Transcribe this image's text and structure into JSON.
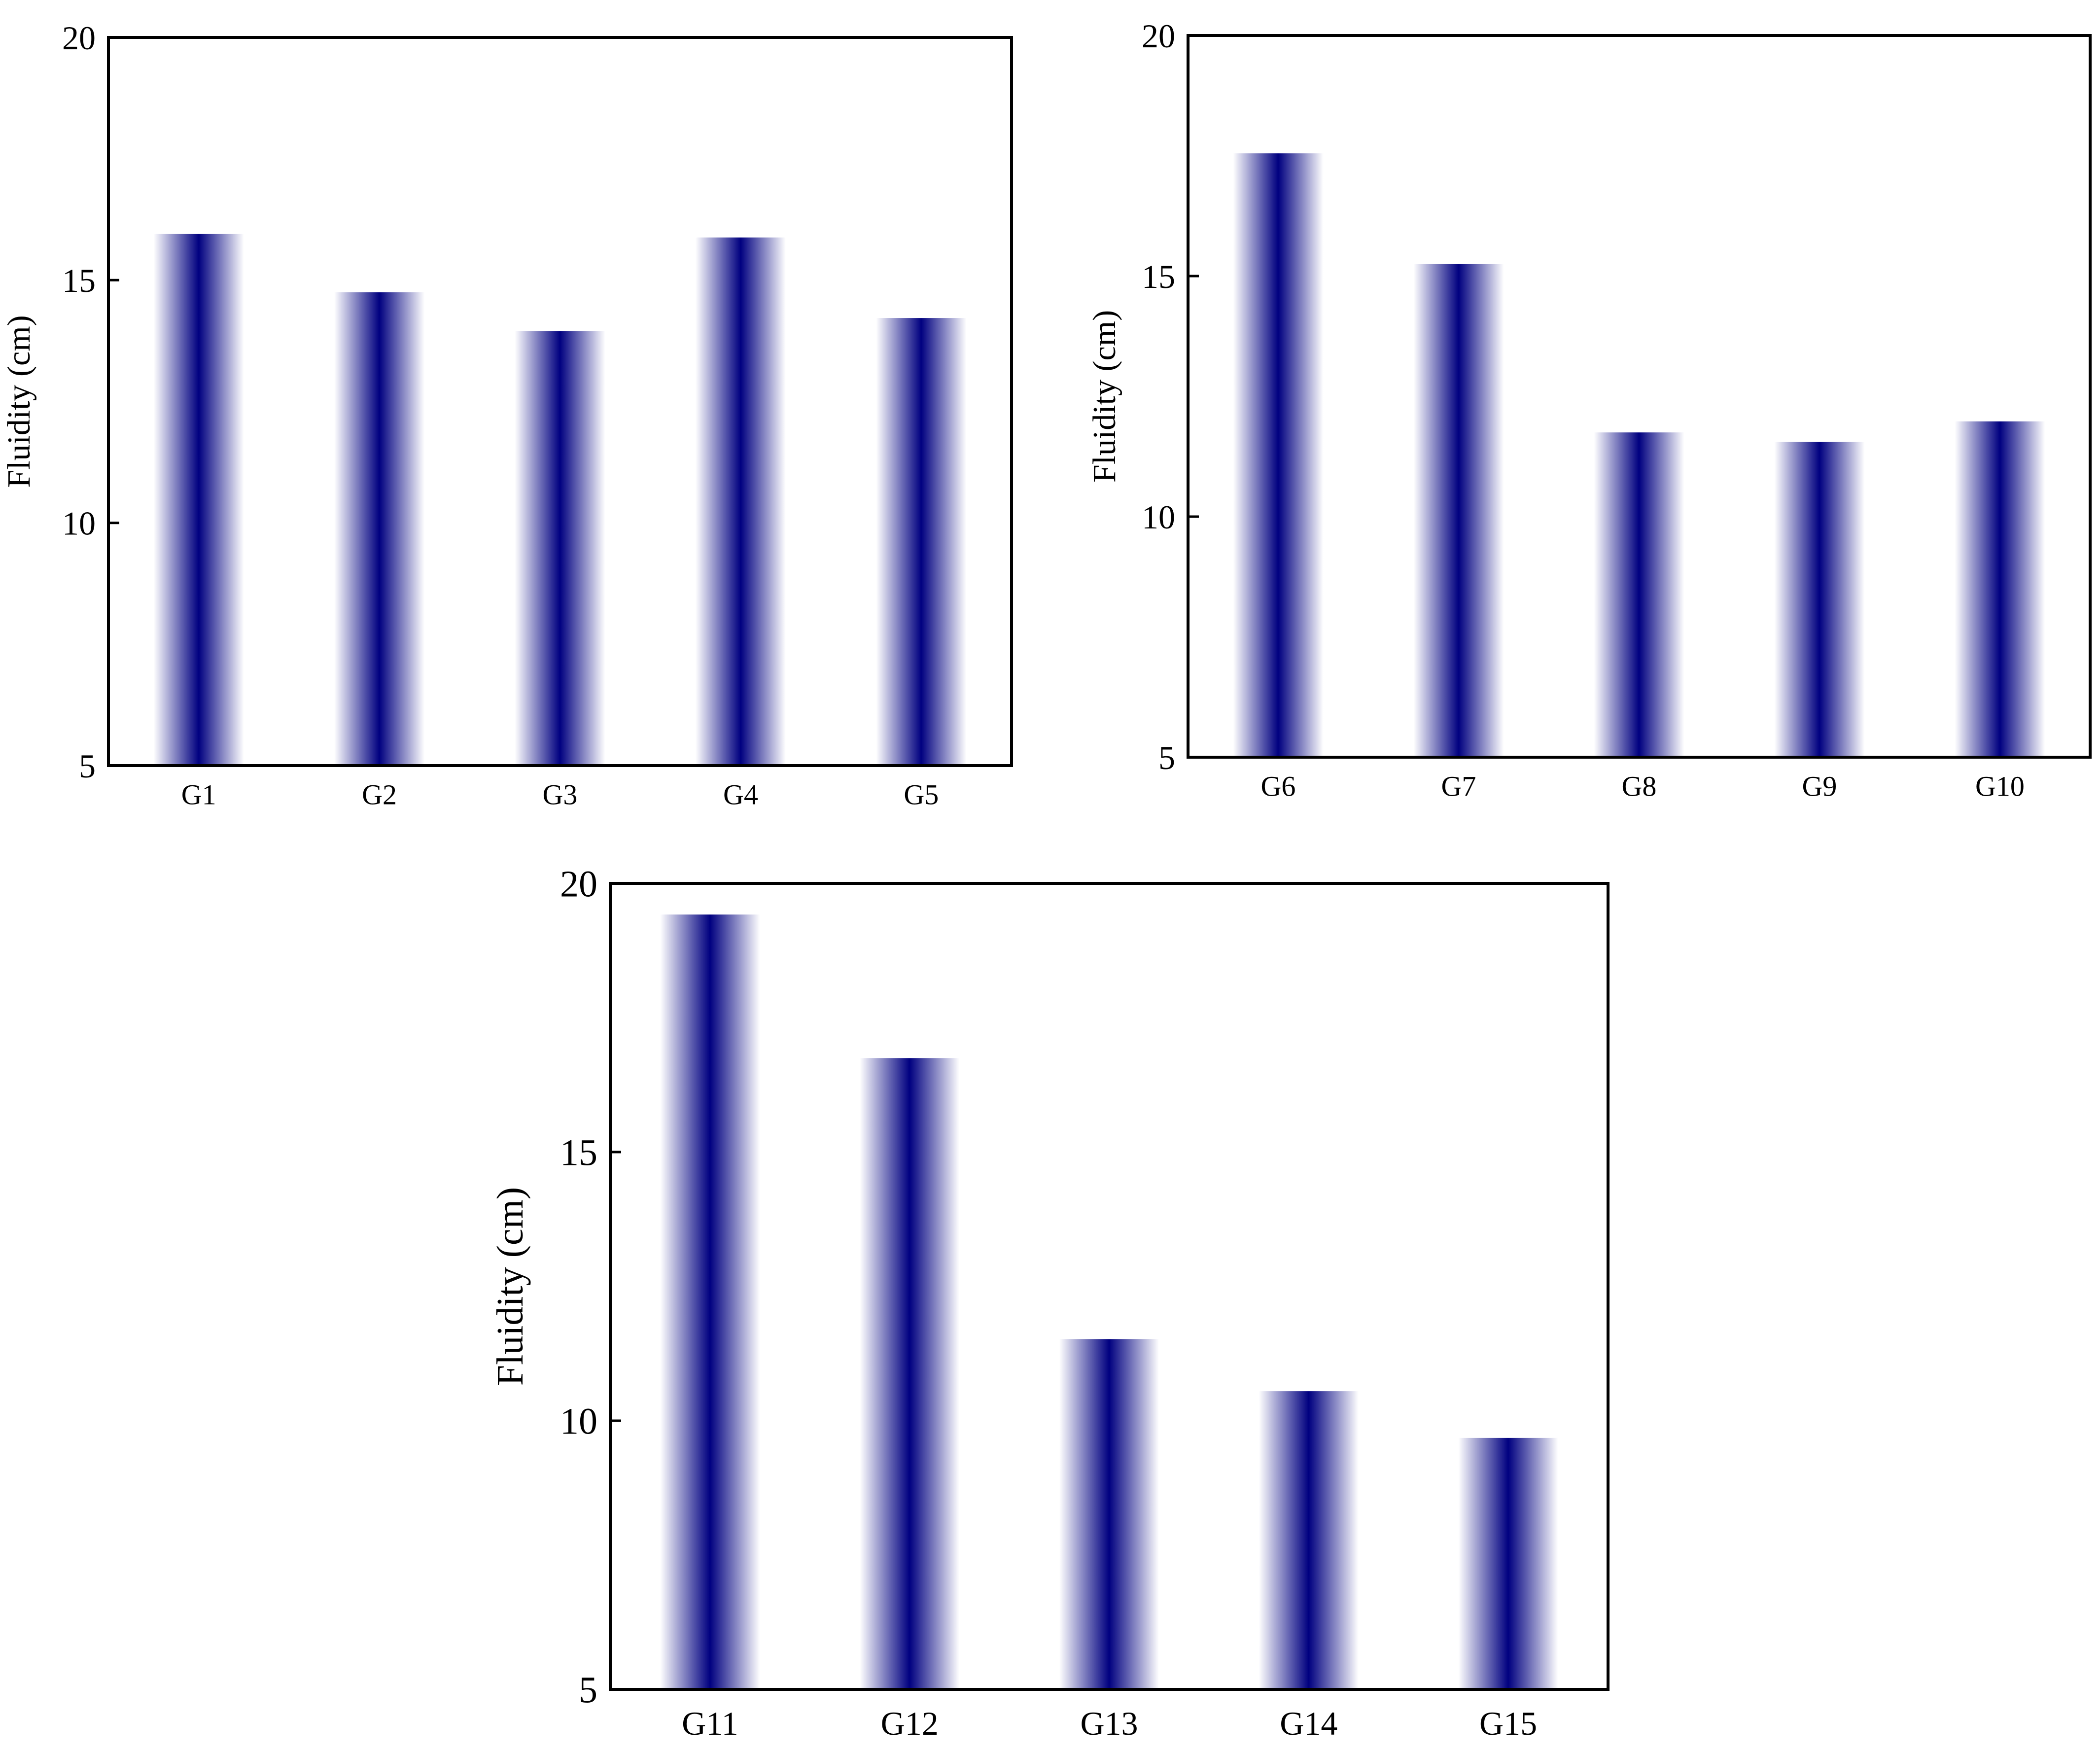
{
  "colors": {
    "bar_dark": "#000080",
    "bar_light": "#ffffff",
    "axis": "#000000",
    "background": "#ffffff"
  },
  "chart_data": [
    {
      "type": "bar",
      "categories": [
        "G1",
        "G2",
        "G3",
        "G4",
        "G5"
      ],
      "values": [
        15.95,
        14.75,
        13.95,
        15.88,
        14.22
      ],
      "title": "",
      "xlabel": "",
      "ylabel": "Fluidity (cm)",
      "ylim": [
        5,
        20
      ],
      "yticks": [
        "5",
        "10",
        "15",
        "20"
      ],
      "grid": false,
      "legend": "none"
    },
    {
      "type": "bar",
      "categories": [
        "G6",
        "G7",
        "G8",
        "G9",
        "G10"
      ],
      "values": [
        17.55,
        15.25,
        11.75,
        11.55,
        11.98
      ],
      "title": "",
      "xlabel": "",
      "ylabel": "Fluidity (cm)",
      "ylim": [
        5,
        20
      ],
      "yticks": [
        "5",
        "10",
        "15",
        "20"
      ],
      "grid": false,
      "legend": "none"
    },
    {
      "type": "bar",
      "categories": [
        "G11",
        "G12",
        "G13",
        "G14",
        "G15"
      ],
      "values": [
        19.42,
        16.75,
        11.52,
        10.55,
        9.68
      ],
      "title": "",
      "xlabel": "",
      "ylabel": "Fluidity (cm)",
      "ylim": [
        5,
        20
      ],
      "yticks": [
        "5",
        "10",
        "15",
        "20"
      ],
      "grid": false,
      "legend": "none"
    }
  ]
}
